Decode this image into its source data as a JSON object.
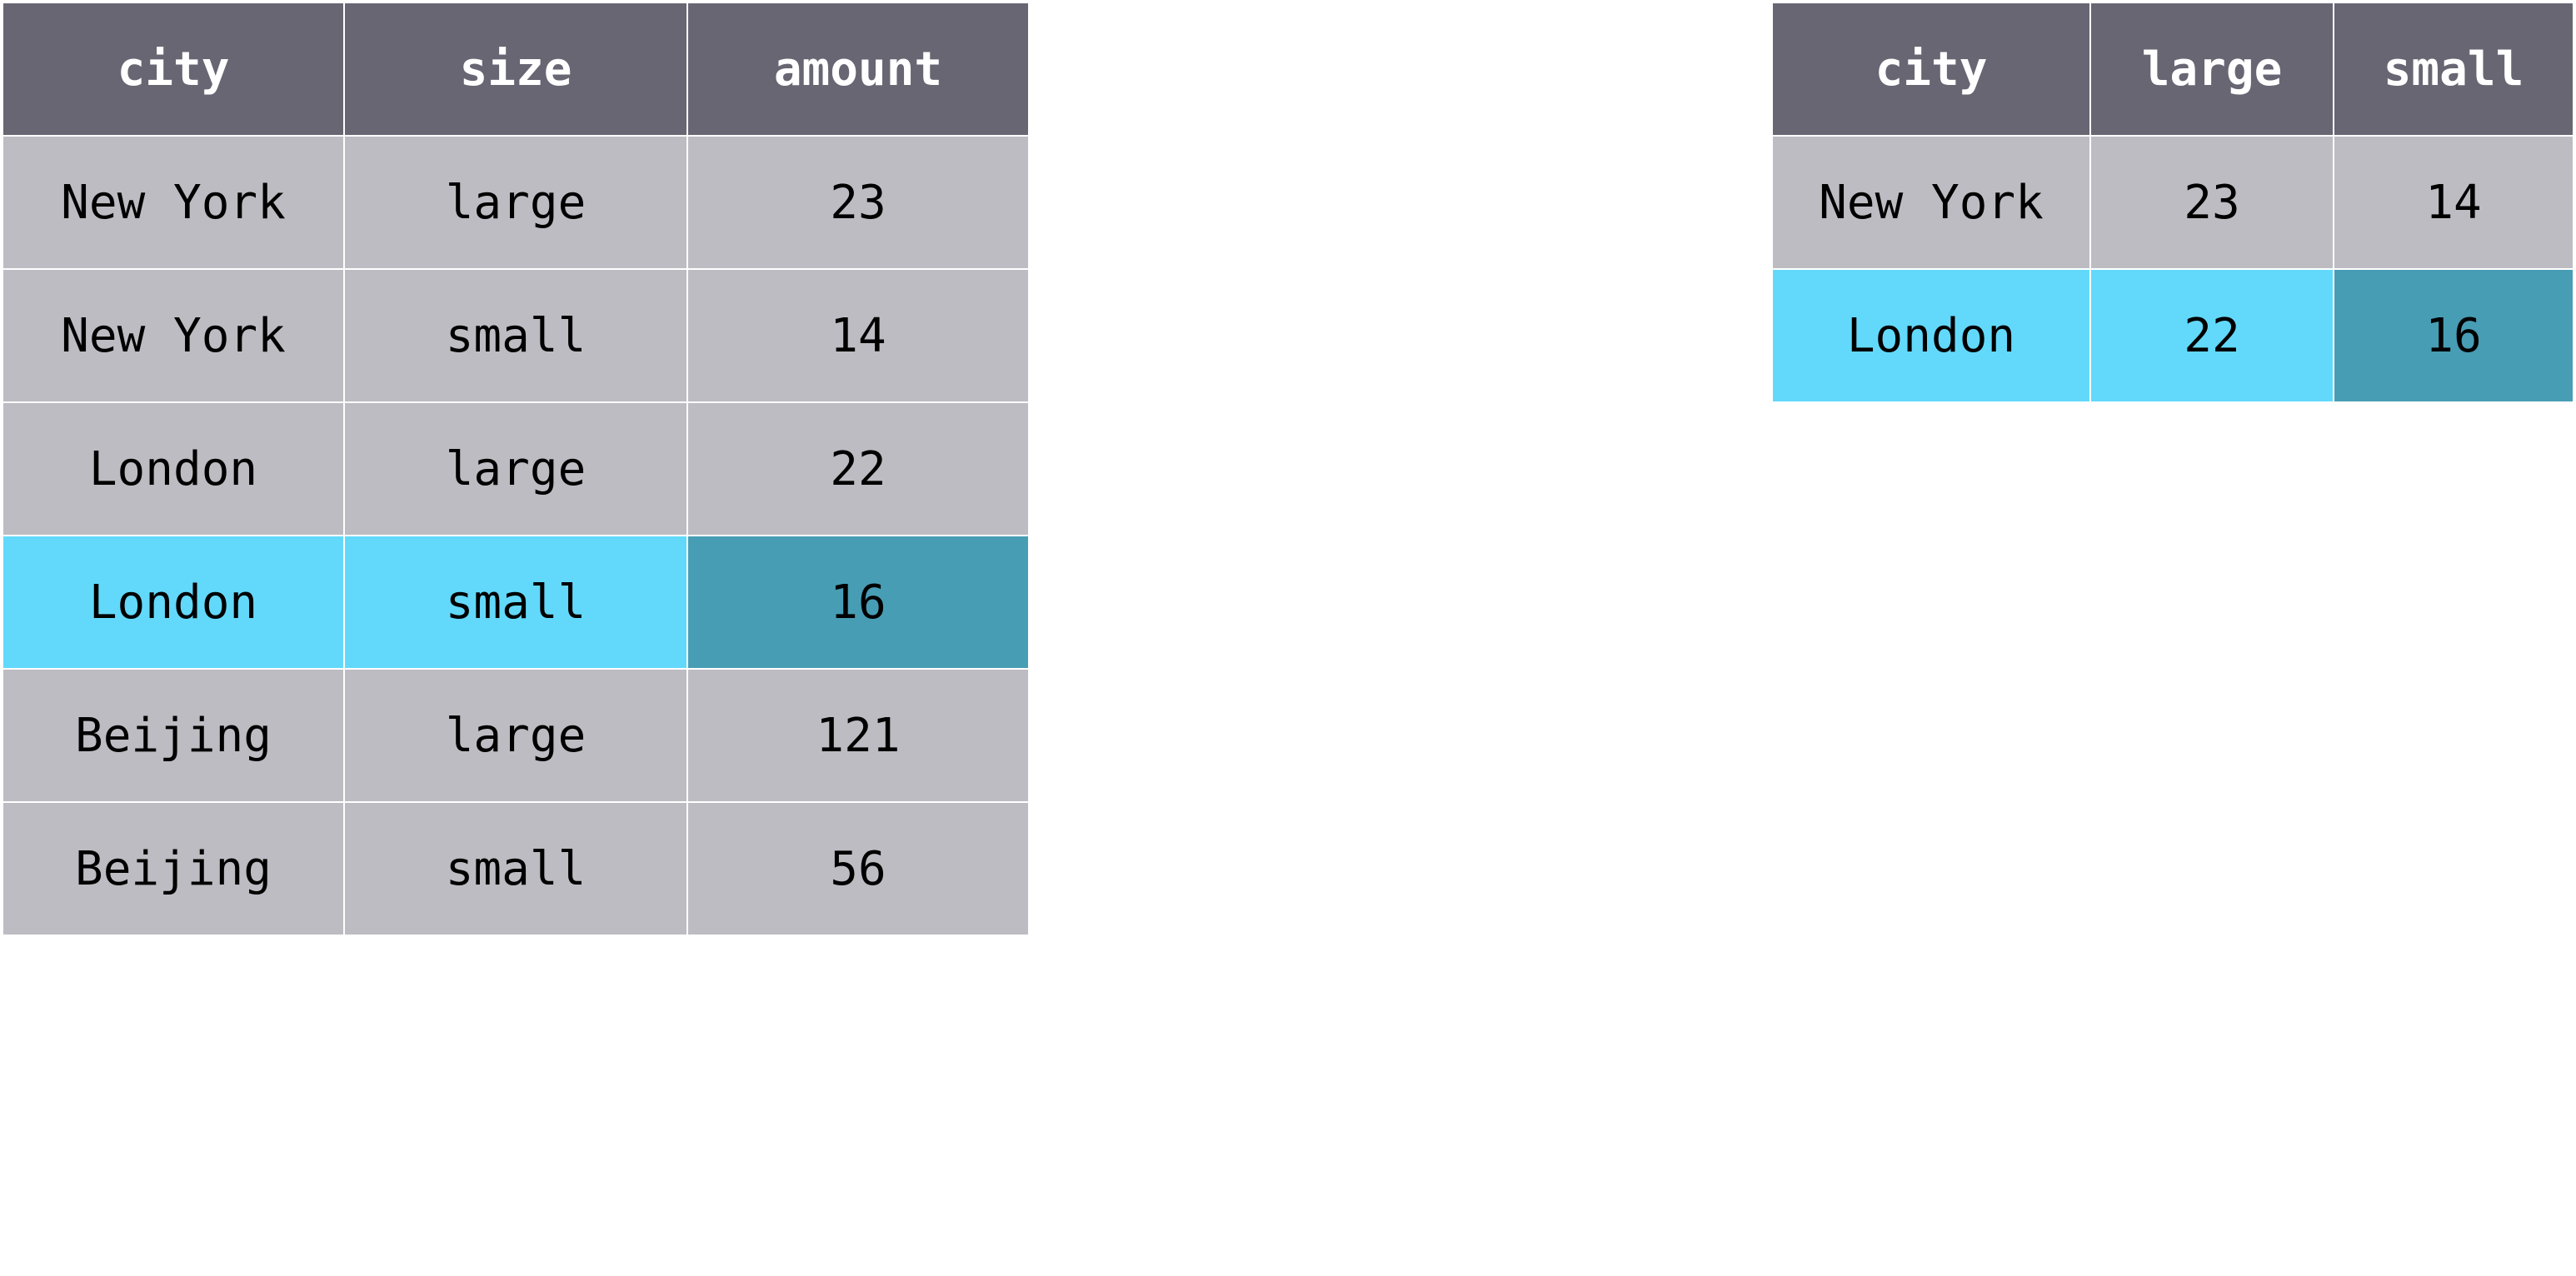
{
  "long_table": {
    "headers": [
      "city",
      "size",
      "amount"
    ],
    "rows": [
      [
        "New York",
        "large",
        "23"
      ],
      [
        "New York",
        "small",
        "14"
      ],
      [
        "London",
        "large",
        "22"
      ],
      [
        "London",
        "small",
        "16"
      ],
      [
        "Beijing",
        "large",
        "121"
      ],
      [
        "Beijing",
        "small",
        "56"
      ]
    ]
  },
  "wide_table": {
    "headers": [
      "city",
      "large",
      "small"
    ],
    "rows": [
      [
        "New York",
        "23",
        "14"
      ],
      [
        "London",
        "22",
        "16"
      ]
    ]
  },
  "colors": {
    "header_bg": "#686673",
    "cell_bg": "#bdbcc2",
    "highlight_light": "#62d9fb",
    "highlight_dark": "#479db4"
  }
}
